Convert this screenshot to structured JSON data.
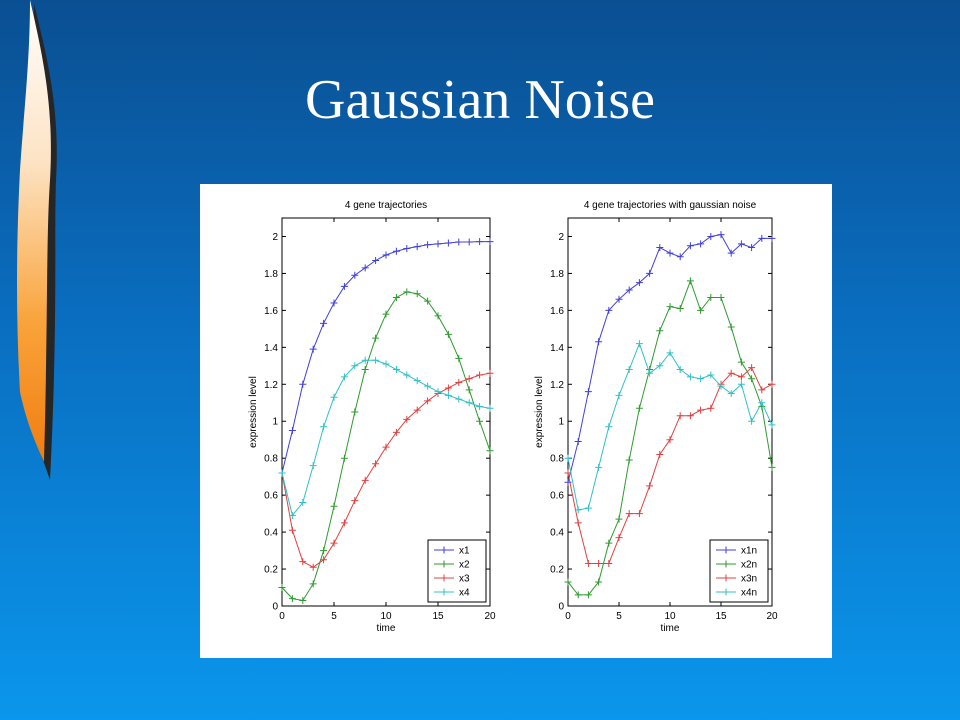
{
  "slide": {
    "title": "Gaussian Noise",
    "colors": {
      "background_top": "#0a4f92",
      "background_bottom": "#0a96ec",
      "flame": "#f7931e"
    }
  },
  "chart_data": [
    {
      "type": "line",
      "title": "4 gene trajectories",
      "xlabel": "time",
      "ylabel": "expression level",
      "xlim": [
        0,
        20
      ],
      "ylim": [
        0,
        2.1
      ],
      "xticks": [
        0,
        5,
        10,
        15,
        20
      ],
      "yticks": [
        0,
        0.2,
        0.4,
        0.6,
        0.8,
        1,
        1.2,
        1.4,
        1.6,
        1.8,
        2
      ],
      "grid": false,
      "marker": "+",
      "legend": "bottom-right",
      "x": [
        0,
        1,
        2,
        3,
        4,
        5,
        6,
        7,
        8,
        9,
        10,
        11,
        12,
        13,
        14,
        15,
        16,
        17,
        18,
        19,
        20
      ],
      "series": [
        {
          "name": "x1",
          "color": "#3f3fdd",
          "values": [
            0.72,
            0.95,
            1.2,
            1.39,
            1.53,
            1.64,
            1.73,
            1.79,
            1.83,
            1.87,
            1.9,
            1.92,
            1.935,
            1.945,
            1.955,
            1.96,
            1.965,
            1.97,
            1.97,
            1.972,
            1.972
          ]
        },
        {
          "name": "x2",
          "color": "#2e9a2e",
          "values": [
            0.1,
            0.04,
            0.03,
            0.12,
            0.3,
            0.54,
            0.8,
            1.05,
            1.28,
            1.45,
            1.58,
            1.67,
            1.7,
            1.69,
            1.65,
            1.57,
            1.47,
            1.34,
            1.17,
            1.0,
            0.84
          ]
        },
        {
          "name": "x3",
          "color": "#e04040",
          "values": [
            0.72,
            0.41,
            0.24,
            0.21,
            0.25,
            0.34,
            0.45,
            0.57,
            0.68,
            0.77,
            0.86,
            0.94,
            1.01,
            1.06,
            1.11,
            1.15,
            1.18,
            1.21,
            1.23,
            1.25,
            1.26
          ]
        },
        {
          "name": "x4",
          "color": "#30c0c8",
          "values": [
            0.72,
            0.49,
            0.56,
            0.76,
            0.97,
            1.13,
            1.24,
            1.3,
            1.33,
            1.33,
            1.31,
            1.28,
            1.25,
            1.22,
            1.19,
            1.16,
            1.14,
            1.12,
            1.1,
            1.08,
            1.07
          ]
        }
      ]
    },
    {
      "type": "line",
      "title": "4 gene trajectories with gaussian noise",
      "xlabel": "time",
      "ylabel": "expression level",
      "xlim": [
        0,
        20
      ],
      "ylim": [
        0,
        2.1
      ],
      "xticks": [
        0,
        5,
        10,
        15,
        20
      ],
      "yticks": [
        0,
        0.2,
        0.4,
        0.6,
        0.8,
        1,
        1.2,
        1.4,
        1.6,
        1.8,
        2
      ],
      "grid": false,
      "marker": "+",
      "legend": "bottom-right",
      "x": [
        0,
        1,
        2,
        3,
        4,
        5,
        6,
        7,
        8,
        9,
        10,
        11,
        12,
        13,
        14,
        15,
        16,
        17,
        18,
        19,
        20
      ],
      "series": [
        {
          "name": "x1n",
          "color": "#3f3fdd",
          "values": [
            0.67,
            0.89,
            1.16,
            1.43,
            1.6,
            1.66,
            1.71,
            1.75,
            1.8,
            1.94,
            1.91,
            1.89,
            1.95,
            1.96,
            2.0,
            2.01,
            1.91,
            1.96,
            1.94,
            1.99,
            1.99
          ]
        },
        {
          "name": "x2n",
          "color": "#2e9a2e",
          "values": [
            0.13,
            0.06,
            0.06,
            0.13,
            0.34,
            0.47,
            0.79,
            1.07,
            1.28,
            1.49,
            1.62,
            1.61,
            1.76,
            1.6,
            1.67,
            1.67,
            1.51,
            1.32,
            1.23,
            1.08,
            0.75
          ]
        },
        {
          "name": "x3n",
          "color": "#e04040",
          "values": [
            0.72,
            0.45,
            0.23,
            0.23,
            0.23,
            0.37,
            0.5,
            0.5,
            0.65,
            0.82,
            0.9,
            1.03,
            1.03,
            1.06,
            1.07,
            1.2,
            1.26,
            1.24,
            1.29,
            1.17,
            1.2
          ]
        },
        {
          "name": "x4n",
          "color": "#30c0c8",
          "values": [
            0.8,
            0.52,
            0.53,
            0.75,
            0.97,
            1.14,
            1.28,
            1.42,
            1.26,
            1.3,
            1.37,
            1.28,
            1.24,
            1.23,
            1.25,
            1.19,
            1.15,
            1.2,
            1.0,
            1.1,
            0.98
          ]
        }
      ]
    }
  ]
}
